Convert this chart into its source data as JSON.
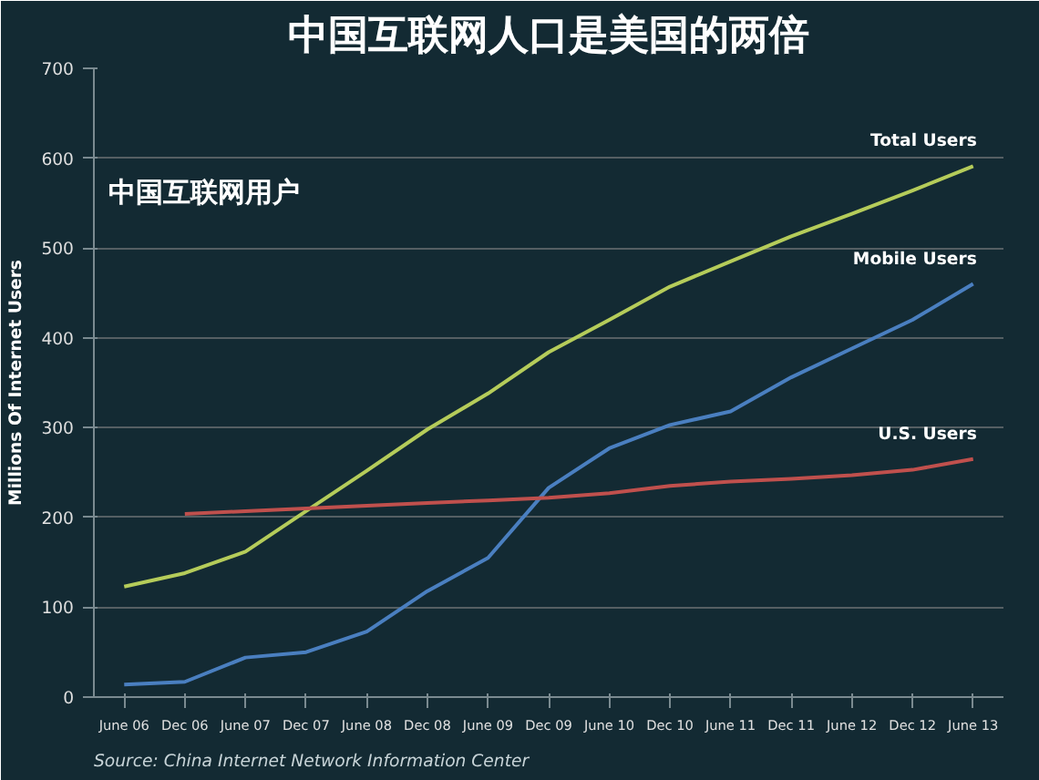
{
  "chart_data": {
    "type": "line",
    "title": "中国互联网人口是美国的两倍",
    "subtitle": "中国互联网用户",
    "ylabel": "Millions Of Internet Users",
    "categories": [
      "June 06",
      "Dec 06",
      "June 07",
      "Dec 07",
      "June 08",
      "Dec 08",
      "June 09",
      "Dec 09",
      "June 10",
      "Dec 10",
      "June 11",
      "Dec 11",
      "June 12",
      "Dec 12",
      "June 13"
    ],
    "series": [
      {
        "name": "Total Users",
        "color": "#b5cc5a",
        "values": [
          123,
          138,
          162,
          207,
          252,
          298,
          338,
          384,
          420,
          457,
          485,
          513,
          538,
          564,
          591
        ]
      },
      {
        "name": "Mobile Users",
        "color": "#4a7fc0",
        "values": [
          14,
          17,
          44,
          50,
          73,
          118,
          155,
          233,
          277,
          303,
          318,
          356,
          388,
          420,
          460
        ]
      },
      {
        "name": "U.S. Users",
        "color": "#c0504d",
        "values": [
          null,
          204,
          207,
          210,
          213,
          216,
          219,
          222,
          227,
          235,
          240,
          243,
          247,
          253,
          265
        ]
      }
    ],
    "ylim": [
      0,
      700
    ],
    "yticks": [
      0,
      100,
      200,
      300,
      400,
      500,
      600,
      700
    ],
    "grid": "y",
    "marker": "none",
    "line_style": "solid",
    "annotations": [
      "Source: China Internet Network Information Center"
    ]
  }
}
